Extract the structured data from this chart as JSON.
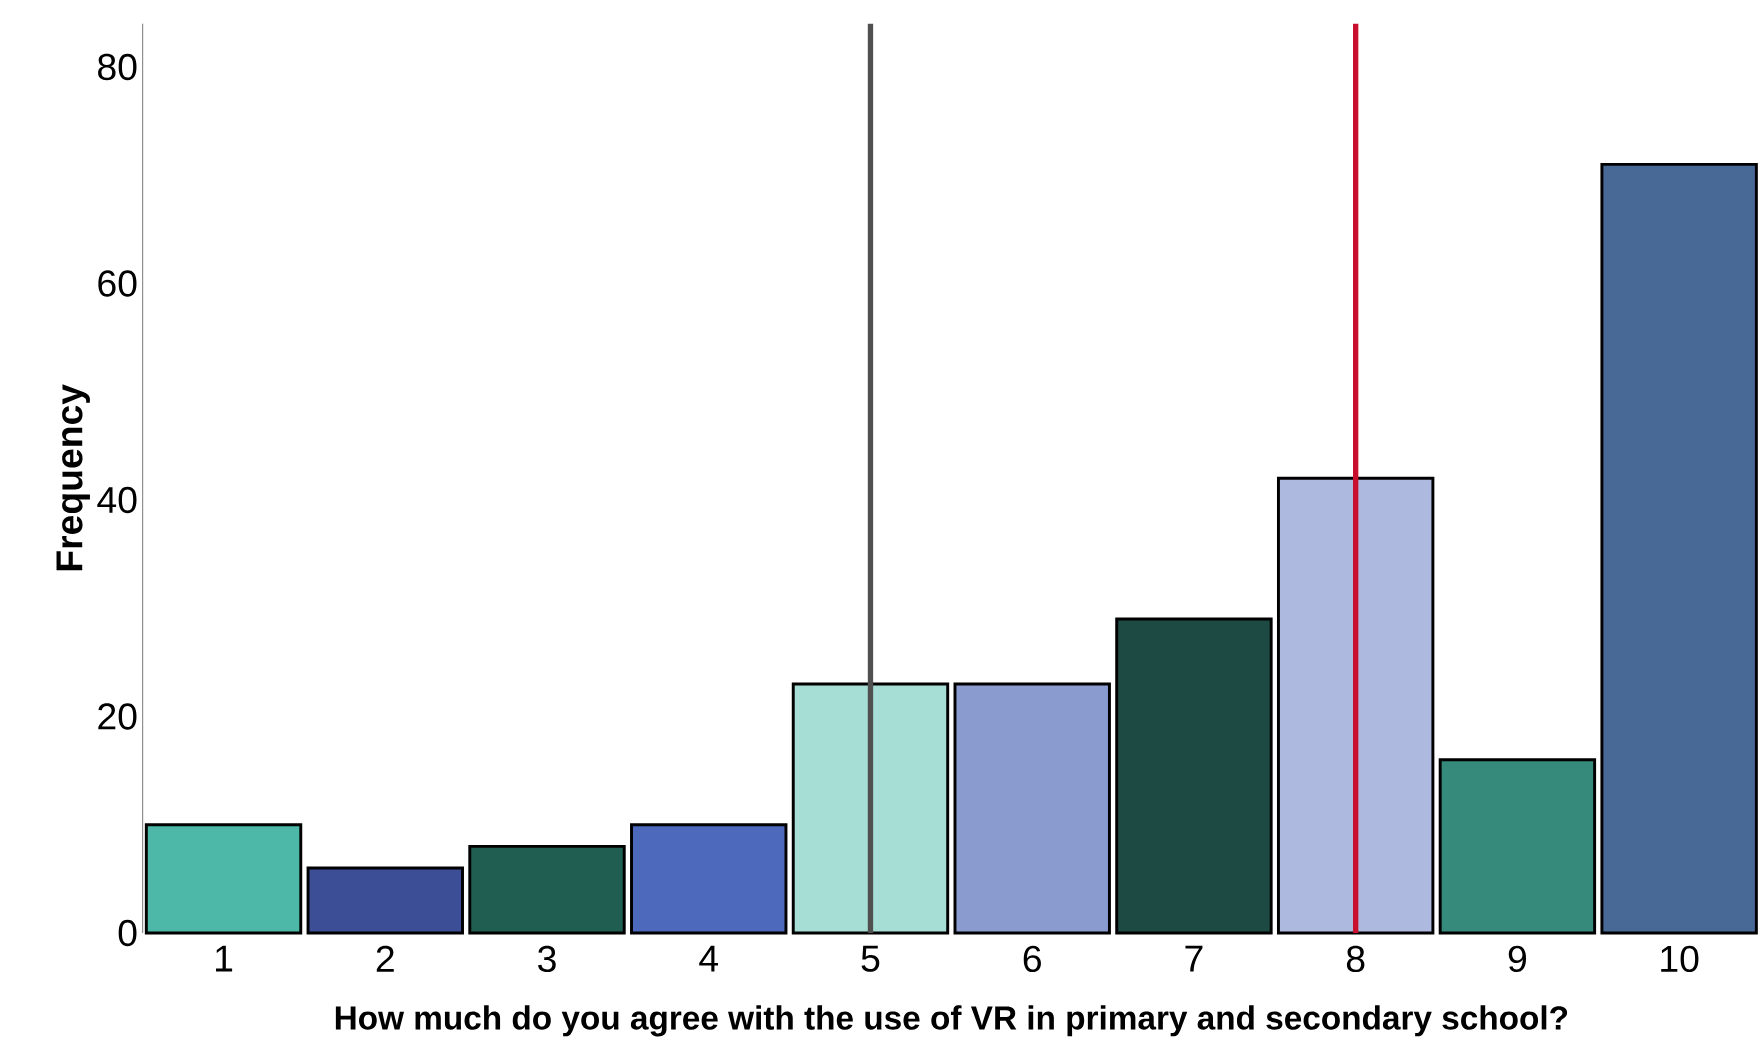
{
  "chart_data": {
    "type": "bar",
    "xlabel": "How much do you agree with the use of VR in primary and secondary school?",
    "ylabel": "Frequency",
    "x": [
      1,
      2,
      3,
      4,
      5,
      6,
      7,
      8,
      9,
      10
    ],
    "values": [
      10,
      6,
      8,
      10,
      23,
      23,
      29,
      42,
      16,
      71
    ],
    "colors": [
      "#4db8a8",
      "#3c4f96",
      "#215e52",
      "#4d69bb",
      "#a6ddd4",
      "#8a9bd0",
      "#1e4a44",
      "#adb9de",
      "#368a7c",
      "#486896"
    ],
    "xlim": [
      0.5,
      10.5
    ],
    "ylim": [
      0,
      84
    ],
    "xticks": [
      1,
      2,
      3,
      4,
      5,
      6,
      7,
      8,
      9,
      10
    ],
    "yticks": [
      0,
      20,
      40,
      60,
      80
    ],
    "ref_lines": [
      {
        "axis": "x",
        "value": 5,
        "color": "#505050"
      },
      {
        "axis": "x",
        "value": 8,
        "color": "#c8102e"
      }
    ],
    "grid": false
  }
}
